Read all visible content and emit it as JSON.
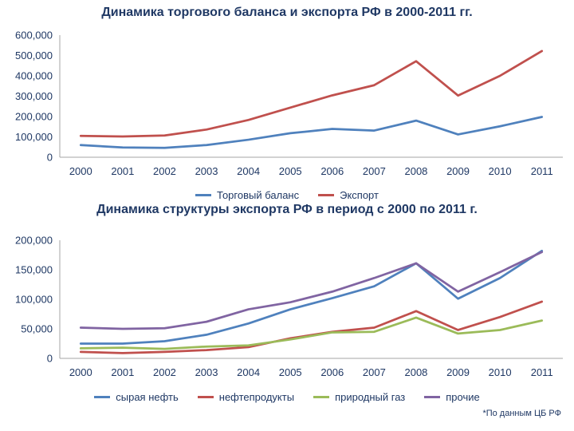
{
  "slide": {
    "footnote": "*По данным ЦБ РФ"
  },
  "colors": {
    "text": "#1F3864",
    "axis": "#A6A6A6",
    "background": "#FFFFFF"
  },
  "chart_data": [
    {
      "type": "line",
      "title": "Динамика торгового баланса и экспорта РФ в 2000-2011 гг.",
      "categories": [
        "2000",
        "2001",
        "2002",
        "2003",
        "2004",
        "2005",
        "2006",
        "2007",
        "2008",
        "2009",
        "2010",
        "2011"
      ],
      "series": [
        {
          "name": "Торговый баланс",
          "color": "#4F81BD",
          "values": [
            60000,
            48000,
            46000,
            60000,
            86000,
            118000,
            139000,
            131000,
            180000,
            112000,
            152000,
            198000
          ]
        },
        {
          "name": "Экспорт",
          "color": "#C0504D",
          "values": [
            105000,
            102000,
            107000,
            136000,
            183000,
            244000,
            304000,
            354000,
            472000,
            303000,
            400000,
            522000
          ]
        }
      ],
      "ylim": [
        0,
        600000
      ],
      "yticks": {
        "values": [
          0,
          100000,
          200000,
          300000,
          400000,
          500000,
          600000
        ],
        "labels": [
          "0",
          "100,000",
          "200,000",
          "300,000",
          "400,000",
          "500,000",
          "600,000"
        ]
      },
      "grid": false,
      "legend_position": "bottom"
    },
    {
      "type": "line",
      "title": "Динамика структуры экспорта РФ в период с 2000 по 2011 г.",
      "categories": [
        "2000",
        "2001",
        "2002",
        "2003",
        "2004",
        "2005",
        "2006",
        "2007",
        "2008",
        "2009",
        "2010",
        "2011"
      ],
      "series": [
        {
          "name": "сырая нефть",
          "color": "#4F81BD",
          "values": [
            25000,
            25000,
            29000,
            40000,
            59000,
            83000,
            102000,
            122000,
            161000,
            101000,
            136000,
            182000
          ]
        },
        {
          "name": "нефтепродукты",
          "color": "#C0504D",
          "values": [
            11000,
            9000,
            11000,
            14000,
            19000,
            34000,
            45000,
            52000,
            80000,
            48000,
            70000,
            96000
          ]
        },
        {
          "name": "природный газ",
          "color": "#9BBB59",
          "values": [
            17000,
            18000,
            16000,
            20000,
            22000,
            32000,
            44000,
            45000,
            69000,
            42000,
            48000,
            64000
          ]
        },
        {
          "name": "прочие",
          "color": "#8064A2",
          "values": [
            52000,
            50000,
            51000,
            62000,
            83000,
            95000,
            113000,
            136000,
            161000,
            113000,
            146000,
            180000
          ]
        }
      ],
      "ylim": [
        0,
        200000
      ],
      "yticks": {
        "values": [
          0,
          50000,
          100000,
          150000,
          200000
        ],
        "labels": [
          "0",
          "50,000",
          "100,000",
          "150,000",
          "200,000"
        ]
      },
      "grid": false,
      "legend_position": "bottom"
    }
  ]
}
